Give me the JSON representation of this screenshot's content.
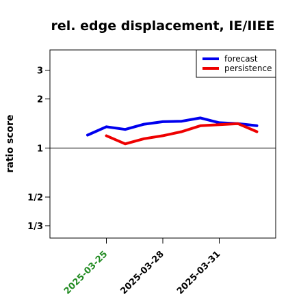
{
  "colors": {
    "forecast": "#0000ee",
    "persistence": "#ee0000",
    "highlight_tick": "#228b22",
    "axis": "#000000",
    "reference_line": "#000000"
  },
  "chart_data": {
    "type": "line",
    "title": "rel. edge displacement, IE/IIEE",
    "xlabel": "",
    "ylabel": "ratio score",
    "y_scale": "log",
    "ylim": [
      0.28,
      4.0
    ],
    "xlim": [
      "2025-03-22",
      "2025-04-03"
    ],
    "yticks": [
      {
        "value": 3,
        "label": "3"
      },
      {
        "value": 2,
        "label": "2"
      },
      {
        "value": 1,
        "label": "1"
      },
      {
        "value": 0.5,
        "label": "1/2"
      },
      {
        "value": 0.3333,
        "label": "1/3"
      }
    ],
    "xticks": [
      {
        "date": "2025-03-25",
        "label": "2025-03-25",
        "highlight": true
      },
      {
        "date": "2025-03-28",
        "label": "2025-03-28",
        "highlight": false
      },
      {
        "date": "2025-03-31",
        "label": "2025-03-31",
        "highlight": false
      }
    ],
    "reference_line": 1,
    "legend_position": "top-right",
    "series": [
      {
        "name": "forecast",
        "color": "#0000ee",
        "points": [
          {
            "x": "2025-03-24",
            "y": 1.2
          },
          {
            "x": "2025-03-25",
            "y": 1.35
          },
          {
            "x": "2025-03-26",
            "y": 1.3
          },
          {
            "x": "2025-03-27",
            "y": 1.4
          },
          {
            "x": "2025-03-28",
            "y": 1.45
          },
          {
            "x": "2025-03-29",
            "y": 1.46
          },
          {
            "x": "2025-03-30",
            "y": 1.53
          },
          {
            "x": "2025-03-31",
            "y": 1.43
          },
          {
            "x": "2025-04-01",
            "y": 1.41
          },
          {
            "x": "2025-04-02",
            "y": 1.37
          }
        ]
      },
      {
        "name": "persistence",
        "color": "#ee0000",
        "points": [
          {
            "x": "2025-03-25",
            "y": 1.19
          },
          {
            "x": "2025-03-26",
            "y": 1.06
          },
          {
            "x": "2025-03-27",
            "y": 1.14
          },
          {
            "x": "2025-03-28",
            "y": 1.19
          },
          {
            "x": "2025-03-29",
            "y": 1.26
          },
          {
            "x": "2025-03-30",
            "y": 1.37
          },
          {
            "x": "2025-03-31",
            "y": 1.39
          },
          {
            "x": "2025-04-01",
            "y": 1.41
          },
          {
            "x": "2025-04-02",
            "y": 1.26
          }
        ]
      }
    ]
  }
}
